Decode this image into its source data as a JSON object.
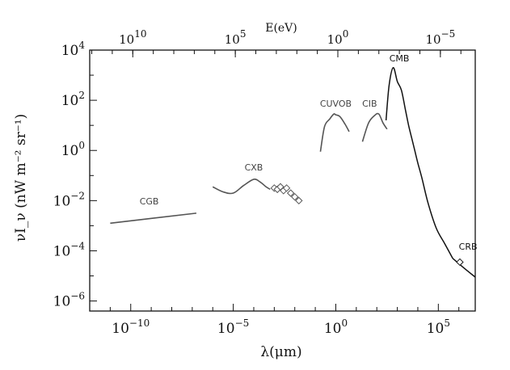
{
  "chart_data": {
    "type": "line",
    "title": "",
    "xlabel": "λ(μm)",
    "x2label": "E(eV)",
    "ylabel": "νI_ν (nW m⁻² sr⁻¹)",
    "xscale": "log10",
    "yscale": "log10",
    "xlim_log10": [
      -12,
      6.8
    ],
    "ylim_log10": [
      -6.4,
      4
    ],
    "x_ticks": [
      {
        "log10": -10,
        "base": "10",
        "exp": "−10"
      },
      {
        "log10": -5,
        "base": "10",
        "exp": "−5"
      },
      {
        "log10": 0,
        "base": "10",
        "exp": "0"
      },
      {
        "log10": 5,
        "base": "10",
        "exp": "5"
      }
    ],
    "y_ticks": [
      {
        "log10": 4,
        "base": "10",
        "exp": "4"
      },
      {
        "log10": 2,
        "base": "10",
        "exp": "2"
      },
      {
        "log10": 0,
        "base": "10",
        "exp": "0"
      },
      {
        "log10": -2,
        "base": "10",
        "exp": "−2"
      },
      {
        "log10": -4,
        "base": "10",
        "exp": "−4"
      },
      {
        "log10": -6,
        "base": "10",
        "exp": "−6"
      }
    ],
    "top_ticks": [
      {
        "log10_lambda": -9.9,
        "base": "10",
        "exp": "10"
      },
      {
        "log10_lambda": -4.9,
        "base": "10",
        "exp": "5"
      },
      {
        "log10_lambda": 0.1,
        "base": "10",
        "exp": "0"
      },
      {
        "log10_lambda": 5.1,
        "base": "10",
        "exp": "−5"
      }
    ],
    "series": [
      {
        "name": "CGB",
        "color": "#555555",
        "x_log10": [
          -11.0,
          -6.8
        ],
        "y_log10": [
          -2.9,
          -2.5
        ],
        "label_at": [
          -9.1,
          -2.15
        ]
      },
      {
        "name": "CXB",
        "color": "#555555",
        "x_log10": [
          -6.0,
          -5.5,
          -5.0,
          -4.5,
          -4.0,
          -3.7,
          -3.4,
          -3.2
        ],
        "y_log10": [
          -1.45,
          -1.65,
          -1.7,
          -1.4,
          -1.15,
          -1.25,
          -1.45,
          -1.55
        ],
        "label_at": [
          -4.0,
          -0.8
        ]
      },
      {
        "name": "CXB points",
        "color": "#555555",
        "marker": "diamond",
        "x_log10": [
          -3.0,
          -2.85,
          -2.7,
          -2.55,
          -2.4,
          -2.2,
          -2.0,
          -1.8
        ],
        "y_log10": [
          -1.5,
          -1.55,
          -1.45,
          -1.6,
          -1.5,
          -1.7,
          -1.85,
          -2.0
        ]
      },
      {
        "name": "CUVOB",
        "color": "#555555",
        "x_log10": [
          -0.75,
          -0.55,
          -0.3,
          -0.1,
          0.0,
          0.2,
          0.45,
          0.65
        ],
        "y_log10": [
          -0.05,
          0.95,
          1.25,
          1.45,
          1.42,
          1.35,
          1.05,
          0.75
        ],
        "label_at": [
          0.0,
          1.75
        ]
      },
      {
        "name": "CIB",
        "color": "#555555",
        "x_log10": [
          1.3,
          1.6,
          1.9,
          2.1,
          2.3,
          2.5
        ],
        "y_log10": [
          0.35,
          1.1,
          1.4,
          1.45,
          1.1,
          0.85
        ],
        "label_at": [
          1.65,
          1.75
        ]
      },
      {
        "name": "CMB",
        "color": "#111111",
        "x_log10": [
          2.45,
          2.6,
          2.8,
          3.0,
          3.2,
          3.4,
          3.55,
          3.7,
          3.85,
          4.0,
          4.2,
          4.5,
          4.9,
          5.3,
          5.7
        ],
        "y_log10": [
          1.2,
          2.6,
          3.3,
          2.75,
          2.4,
          1.6,
          1.0,
          0.5,
          0.0,
          -0.5,
          -1.1,
          -2.1,
          -3.1,
          -3.7,
          -4.3
        ],
        "label_at": [
          3.1,
          3.55
        ]
      },
      {
        "name": "CRB",
        "color": "#111111",
        "x_log10": [
          5.7,
          6.2,
          6.8
        ],
        "y_log10": [
          -4.3,
          -4.65,
          -5.05
        ],
        "label_at": [
          6.45,
          -3.95
        ]
      },
      {
        "name": "CRB point",
        "color": "#111111",
        "marker": "diamond",
        "x_log10": [
          6.05
        ],
        "y_log10": [
          -4.45
        ]
      }
    ]
  }
}
